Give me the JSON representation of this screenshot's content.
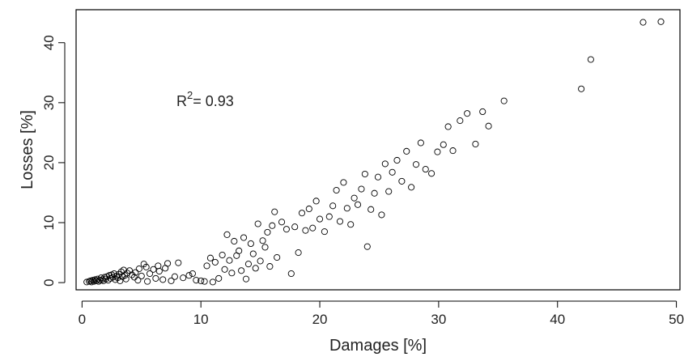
{
  "chart_data": {
    "type": "scatter",
    "title": "",
    "xlabel": "Damages [%]",
    "ylabel": "Losses [%]",
    "xlim": [
      -0.5,
      50.3
    ],
    "ylim": [
      -1.2,
      45.5
    ],
    "xticks": [
      0,
      10,
      20,
      30,
      40,
      50
    ],
    "yticks": [
      0,
      10,
      20,
      30,
      40
    ],
    "xtick_labels": [
      "0",
      "10",
      "20",
      "30",
      "40",
      "50"
    ],
    "ytick_labels": [
      "0",
      "10",
      "20",
      "30",
      "40"
    ],
    "annotation": {
      "base": "R",
      "exponent": "2",
      "value": "= 0.93"
    },
    "marker": "open-circle",
    "grid": false,
    "legend": "none",
    "points": [
      [
        0.4,
        0.1
      ],
      [
        0.6,
        0.2
      ],
      [
        0.7,
        0.3
      ],
      [
        0.8,
        0.1
      ],
      [
        0.9,
        0.4
      ],
      [
        1.0,
        0.2
      ],
      [
        1.1,
        0.5
      ],
      [
        1.2,
        0.3
      ],
      [
        1.3,
        0.6
      ],
      [
        1.4,
        0.2
      ],
      [
        1.5,
        0.4
      ],
      [
        1.6,
        0.8
      ],
      [
        1.7,
        0.5
      ],
      [
        1.8,
        0.3
      ],
      [
        1.9,
        0.9
      ],
      [
        2.0,
        0.6
      ],
      [
        2.1,
        1.0
      ],
      [
        2.2,
        0.4
      ],
      [
        2.3,
        1.2
      ],
      [
        2.4,
        0.7
      ],
      [
        2.5,
        1.3
      ],
      [
        2.6,
        0.9
      ],
      [
        2.7,
        1.5
      ],
      [
        2.8,
        0.5
      ],
      [
        2.9,
        1.1
      ],
      [
        3.0,
        0.8
      ],
      [
        3.1,
        1.4
      ],
      [
        3.2,
        0.3
      ],
      [
        3.3,
        1.8
      ],
      [
        3.4,
        1.0
      ],
      [
        3.5,
        2.1
      ],
      [
        3.6,
        1.2
      ],
      [
        3.7,
        0.6
      ],
      [
        3.8,
        1.6
      ],
      [
        4.0,
        2.0
      ],
      [
        4.2,
        1.3
      ],
      [
        4.4,
        0.9
      ],
      [
        4.5,
        1.7
      ],
      [
        4.7,
        0.4
      ],
      [
        4.8,
        2.3
      ],
      [
        5.0,
        1.1
      ],
      [
        5.2,
        3.1
      ],
      [
        5.4,
        2.6
      ],
      [
        5.5,
        0.2
      ],
      [
        5.7,
        1.5
      ],
      [
        6.0,
        2.2
      ],
      [
        6.2,
        0.7
      ],
      [
        6.4,
        2.8
      ],
      [
        6.5,
        1.9
      ],
      [
        6.8,
        0.5
      ],
      [
        7.0,
        2.4
      ],
      [
        7.2,
        3.2
      ],
      [
        7.5,
        0.3
      ],
      [
        7.8,
        1.0
      ],
      [
        8.1,
        3.3
      ],
      [
        8.5,
        0.8
      ],
      [
        9.0,
        1.2
      ],
      [
        9.3,
        1.5
      ],
      [
        9.6,
        0.4
      ],
      [
        10.0,
        0.3
      ],
      [
        10.3,
        0.2
      ],
      [
        10.5,
        2.8
      ],
      [
        10.8,
        4.1
      ],
      [
        11.0,
        0.1
      ],
      [
        11.2,
        3.4
      ],
      [
        11.5,
        0.7
      ],
      [
        11.8,
        4.6
      ],
      [
        12.0,
        2.2
      ],
      [
        12.2,
        8.0
      ],
      [
        12.4,
        3.7
      ],
      [
        12.6,
        1.6
      ],
      [
        12.8,
        6.9
      ],
      [
        13.0,
        4.5
      ],
      [
        13.2,
        5.3
      ],
      [
        13.4,
        2.0
      ],
      [
        13.6,
        7.5
      ],
      [
        13.8,
        0.6
      ],
      [
        14.0,
        3.1
      ],
      [
        14.2,
        6.5
      ],
      [
        14.4,
        4.8
      ],
      [
        14.6,
        2.4
      ],
      [
        14.8,
        9.8
      ],
      [
        15.0,
        3.6
      ],
      [
        15.2,
        7.0
      ],
      [
        15.4,
        5.9
      ],
      [
        15.6,
        8.4
      ],
      [
        15.8,
        2.7
      ],
      [
        16.0,
        9.5
      ],
      [
        16.2,
        11.8
      ],
      [
        16.4,
        4.2
      ],
      [
        16.8,
        10.1
      ],
      [
        17.2,
        8.9
      ],
      [
        17.6,
        1.5
      ],
      [
        17.9,
        9.3
      ],
      [
        18.2,
        5.0
      ],
      [
        18.5,
        11.6
      ],
      [
        18.8,
        8.7
      ],
      [
        19.1,
        12.3
      ],
      [
        19.4,
        9.1
      ],
      [
        19.7,
        13.6
      ],
      [
        20.0,
        10.6
      ],
      [
        20.4,
        8.5
      ],
      [
        20.8,
        11.0
      ],
      [
        21.1,
        12.8
      ],
      [
        21.4,
        15.4
      ],
      [
        21.7,
        10.2
      ],
      [
        22.0,
        16.7
      ],
      [
        22.3,
        12.4
      ],
      [
        22.6,
        9.7
      ],
      [
        22.9,
        14.1
      ],
      [
        23.2,
        13.0
      ],
      [
        23.5,
        15.6
      ],
      [
        23.8,
        18.1
      ],
      [
        24.0,
        6.0
      ],
      [
        24.3,
        12.2
      ],
      [
        24.6,
        14.9
      ],
      [
        24.9,
        17.6
      ],
      [
        25.2,
        11.3
      ],
      [
        25.5,
        19.8
      ],
      [
        25.8,
        15.2
      ],
      [
        26.1,
        18.4
      ],
      [
        26.5,
        20.4
      ],
      [
        26.9,
        16.9
      ],
      [
        27.3,
        21.9
      ],
      [
        27.7,
        15.9
      ],
      [
        28.1,
        19.7
      ],
      [
        28.5,
        23.3
      ],
      [
        28.9,
        18.9
      ],
      [
        29.4,
        18.2
      ],
      [
        29.9,
        21.8
      ],
      [
        30.4,
        23.0
      ],
      [
        30.8,
        26.0
      ],
      [
        31.2,
        22.0
      ],
      [
        31.8,
        27.0
      ],
      [
        32.4,
        28.2
      ],
      [
        33.1,
        23.1
      ],
      [
        33.7,
        28.5
      ],
      [
        34.2,
        26.1
      ],
      [
        35.5,
        30.3
      ],
      [
        42.0,
        32.3
      ],
      [
        42.8,
        37.2
      ],
      [
        47.2,
        43.4
      ],
      [
        48.7,
        43.5
      ]
    ]
  }
}
